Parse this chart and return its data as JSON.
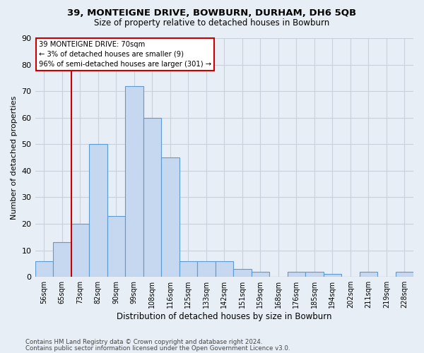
{
  "title1": "39, MONTEIGNE DRIVE, BOWBURN, DURHAM, DH6 5QB",
  "title2": "Size of property relative to detached houses in Bowburn",
  "xlabel": "Distribution of detached houses by size in Bowburn",
  "ylabel": "Number of detached properties",
  "footer1": "Contains HM Land Registry data © Crown copyright and database right 2024.",
  "footer2": "Contains public sector information licensed under the Open Government Licence v3.0.",
  "bin_labels": [
    "56sqm",
    "65sqm",
    "73sqm",
    "82sqm",
    "90sqm",
    "99sqm",
    "108sqm",
    "116sqm",
    "125sqm",
    "133sqm",
    "142sqm",
    "151sqm",
    "159sqm",
    "168sqm",
    "176sqm",
    "185sqm",
    "194sqm",
    "202sqm",
    "211sqm",
    "219sqm",
    "228sqm"
  ],
  "bar_values": [
    6,
    13,
    20,
    50,
    23,
    72,
    60,
    45,
    6,
    6,
    6,
    3,
    2,
    0,
    2,
    2,
    1,
    0,
    2,
    0,
    2
  ],
  "bar_color": "#c5d8f0",
  "bar_edge_color": "#5b9bd5",
  "vline_color": "#cc0000",
  "vline_x": 1.5,
  "annotation_text": "39 MONTEIGNE DRIVE: 70sqm\n← 3% of detached houses are smaller (9)\n96% of semi-detached houses are larger (301) →",
  "box_edge_color": "#cc0000",
  "box_face_color": "#ffffff",
  "ylim": [
    0,
    90
  ],
  "yticks": [
    0,
    10,
    20,
    30,
    40,
    50,
    60,
    70,
    80,
    90
  ],
  "grid_color": "#c8d0dc",
  "bg_color": "#e8eef5",
  "title_fontsize": 9.5,
  "subtitle_fontsize": 8.5
}
